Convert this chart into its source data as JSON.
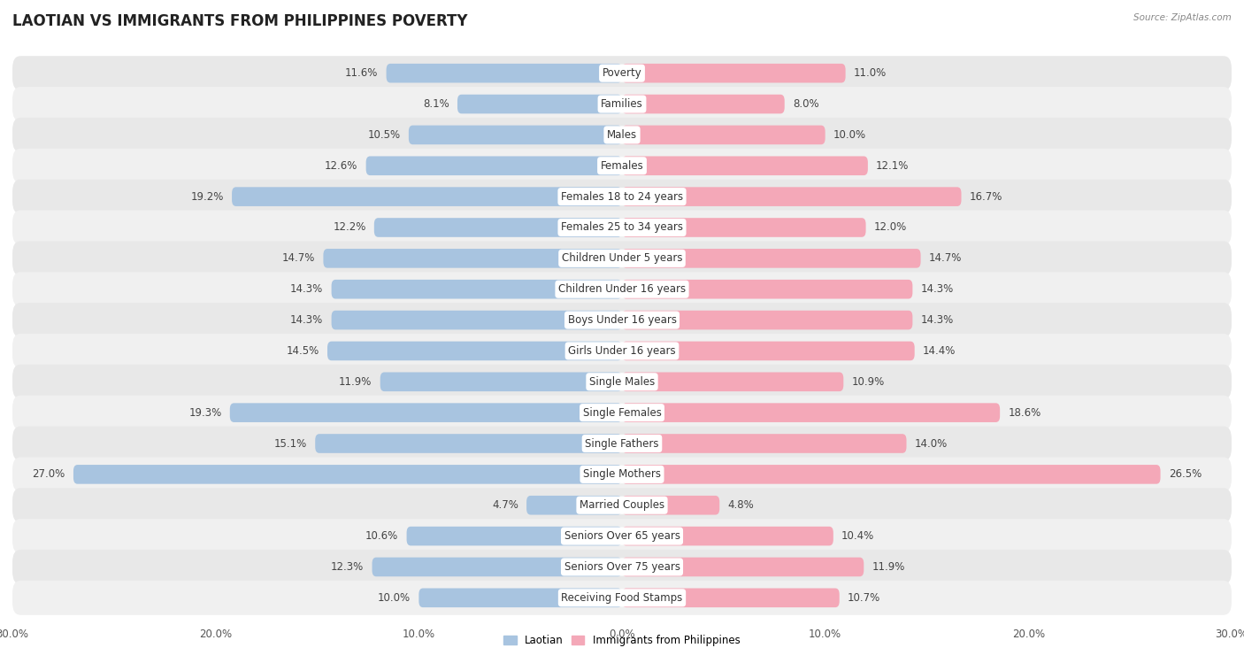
{
  "title": "LAOTIAN VS IMMIGRANTS FROM PHILIPPINES POVERTY",
  "source": "Source: ZipAtlas.com",
  "categories": [
    "Poverty",
    "Families",
    "Males",
    "Females",
    "Females 18 to 24 years",
    "Females 25 to 34 years",
    "Children Under 5 years",
    "Children Under 16 years",
    "Boys Under 16 years",
    "Girls Under 16 years",
    "Single Males",
    "Single Females",
    "Single Fathers",
    "Single Mothers",
    "Married Couples",
    "Seniors Over 65 years",
    "Seniors Over 75 years",
    "Receiving Food Stamps"
  ],
  "laotian": [
    11.6,
    8.1,
    10.5,
    12.6,
    19.2,
    12.2,
    14.7,
    14.3,
    14.3,
    14.5,
    11.9,
    19.3,
    15.1,
    27.0,
    4.7,
    10.6,
    12.3,
    10.0
  ],
  "philippines": [
    11.0,
    8.0,
    10.0,
    12.1,
    16.7,
    12.0,
    14.7,
    14.3,
    14.3,
    14.4,
    10.9,
    18.6,
    14.0,
    26.5,
    4.8,
    10.4,
    11.9,
    10.7
  ],
  "laotian_color": "#a8c4e0",
  "philippines_color": "#f4a8b8",
  "row_color_even": "#e8e8e8",
  "row_color_odd": "#f0f0f0",
  "background_color": "#ffffff",
  "max_value": 30.0,
  "label_fontsize": 8.5,
  "title_fontsize": 12,
  "legend_label_laotian": "Laotian",
  "legend_label_philippines": "Immigrants from Philippines"
}
